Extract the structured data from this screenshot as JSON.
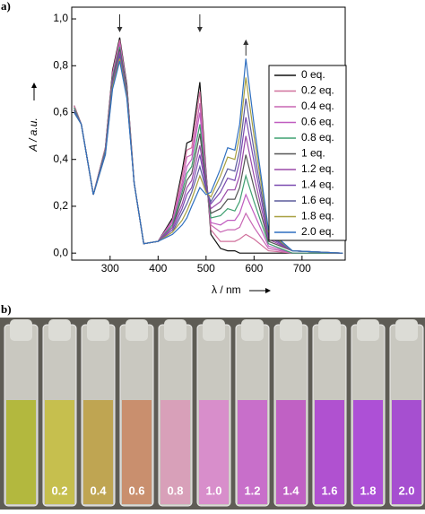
{
  "chart_data": {
    "type": "line",
    "panel_label": "a)",
    "y_label": "A / a.u.",
    "x_label": "λ / nm",
    "xlim": [
      220,
      790
    ],
    "ylim": [
      -0.03,
      1.05
    ],
    "xticks": [
      300,
      400,
      500,
      600,
      700
    ],
    "yticks": [
      {
        "value": 0,
        "label": "0,0"
      },
      {
        "value": 0.2,
        "label": "0,2"
      },
      {
        "value": 0.4,
        "label": "0,4"
      },
      {
        "value": 0.6,
        "label": "0,6"
      },
      {
        "value": 0.8,
        "label": "0,8"
      },
      {
        "value": 1.0,
        "label": "1,0"
      }
    ],
    "arrows": [
      {
        "x": 320,
        "direction": "down"
      },
      {
        "x": 487,
        "direction": "down"
      },
      {
        "x": 583,
        "direction": "up"
      }
    ],
    "x": [
      225,
      240,
      265,
      290,
      305,
      320,
      335,
      350,
      370,
      400,
      430,
      450,
      460,
      470,
      487,
      500,
      510,
      530,
      545,
      560,
      570,
      583,
      600,
      630,
      680,
      785
    ],
    "series": [
      {
        "name": "0 eq.",
        "color": "#111111",
        "values": [
          0.63,
          0.55,
          0.25,
          0.45,
          0.78,
          0.92,
          0.72,
          0.3,
          0.04,
          0.05,
          0.15,
          0.35,
          0.47,
          0.48,
          0.73,
          0.35,
          0.08,
          0.02,
          0.01,
          0.01,
          0.0,
          0.0,
          0.0,
          0.0,
          0.0,
          0.0
        ]
      },
      {
        "name": "0.2 eq.",
        "color": "#d0709c",
        "values": [
          0.63,
          0.55,
          0.25,
          0.45,
          0.77,
          0.91,
          0.71,
          0.3,
          0.04,
          0.05,
          0.14,
          0.33,
          0.44,
          0.45,
          0.69,
          0.34,
          0.1,
          0.05,
          0.05,
          0.05,
          0.06,
          0.08,
          0.06,
          0.01,
          0.0,
          0.0
        ]
      },
      {
        "name": "0.4 eq.",
        "color": "#c866b4",
        "values": [
          0.62,
          0.55,
          0.25,
          0.44,
          0.76,
          0.9,
          0.71,
          0.3,
          0.04,
          0.05,
          0.14,
          0.3,
          0.41,
          0.42,
          0.64,
          0.33,
          0.12,
          0.09,
          0.1,
          0.1,
          0.11,
          0.17,
          0.11,
          0.02,
          0.0,
          0.0
        ]
      },
      {
        "name": "0.6 eq.",
        "color": "#c05cc0",
        "values": [
          0.62,
          0.55,
          0.25,
          0.44,
          0.76,
          0.89,
          0.7,
          0.3,
          0.04,
          0.05,
          0.13,
          0.28,
          0.37,
          0.4,
          0.6,
          0.32,
          0.13,
          0.12,
          0.14,
          0.14,
          0.17,
          0.25,
          0.17,
          0.03,
          0.0,
          0.0
        ]
      },
      {
        "name": "0.8 eq.",
        "color": "#3fa070",
        "values": [
          0.62,
          0.55,
          0.25,
          0.44,
          0.75,
          0.88,
          0.7,
          0.3,
          0.04,
          0.05,
          0.12,
          0.26,
          0.34,
          0.37,
          0.55,
          0.31,
          0.15,
          0.16,
          0.19,
          0.18,
          0.22,
          0.33,
          0.22,
          0.04,
          0.0,
          0.0
        ]
      },
      {
        "name": "1 eq.",
        "color": "#555555",
        "values": [
          0.61,
          0.55,
          0.25,
          0.43,
          0.74,
          0.87,
          0.69,
          0.3,
          0.04,
          0.05,
          0.11,
          0.24,
          0.31,
          0.34,
          0.51,
          0.3,
          0.17,
          0.19,
          0.23,
          0.23,
          0.28,
          0.42,
          0.28,
          0.05,
          0.01,
          0.0
        ]
      },
      {
        "name": "1.2 eq.",
        "color": "#9a4aa8",
        "values": [
          0.61,
          0.55,
          0.25,
          0.43,
          0.73,
          0.86,
          0.68,
          0.3,
          0.04,
          0.05,
          0.11,
          0.21,
          0.28,
          0.31,
          0.46,
          0.29,
          0.19,
          0.22,
          0.27,
          0.27,
          0.33,
          0.5,
          0.33,
          0.06,
          0.01,
          0.0
        ]
      },
      {
        "name": "1.4 eq.",
        "color": "#7a4ab0",
        "values": [
          0.61,
          0.55,
          0.25,
          0.43,
          0.72,
          0.85,
          0.68,
          0.3,
          0.04,
          0.05,
          0.1,
          0.19,
          0.25,
          0.28,
          0.42,
          0.28,
          0.21,
          0.26,
          0.32,
          0.31,
          0.39,
          0.58,
          0.39,
          0.07,
          0.01,
          0.0
        ]
      },
      {
        "name": "1.6 eq.",
        "color": "#5c5c9c",
        "values": [
          0.61,
          0.55,
          0.25,
          0.43,
          0.72,
          0.84,
          0.67,
          0.3,
          0.04,
          0.05,
          0.09,
          0.17,
          0.21,
          0.26,
          0.37,
          0.27,
          0.22,
          0.29,
          0.36,
          0.35,
          0.44,
          0.66,
          0.44,
          0.08,
          0.01,
          0.0
        ]
      },
      {
        "name": "1.8 eq.",
        "color": "#a8a040",
        "values": [
          0.6,
          0.55,
          0.25,
          0.42,
          0.71,
          0.83,
          0.67,
          0.3,
          0.04,
          0.05,
          0.09,
          0.14,
          0.18,
          0.23,
          0.33,
          0.26,
          0.24,
          0.33,
          0.41,
          0.4,
          0.5,
          0.75,
          0.5,
          0.09,
          0.01,
          0.0
        ]
      },
      {
        "name": "2.0 eq.",
        "color": "#2f6fc0",
        "values": [
          0.6,
          0.55,
          0.25,
          0.42,
          0.7,
          0.82,
          0.66,
          0.3,
          0.04,
          0.05,
          0.08,
          0.12,
          0.15,
          0.2,
          0.28,
          0.25,
          0.26,
          0.36,
          0.45,
          0.44,
          0.55,
          0.83,
          0.55,
          0.1,
          0.01,
          0.0
        ]
      }
    ]
  },
  "photo": {
    "panel_label": "b)",
    "labels": [
      "0.2",
      "0.4",
      "0.6",
      "0.8",
      "1.0",
      "1.2",
      "1.4",
      "1.6",
      "1.8",
      "2.0"
    ]
  }
}
